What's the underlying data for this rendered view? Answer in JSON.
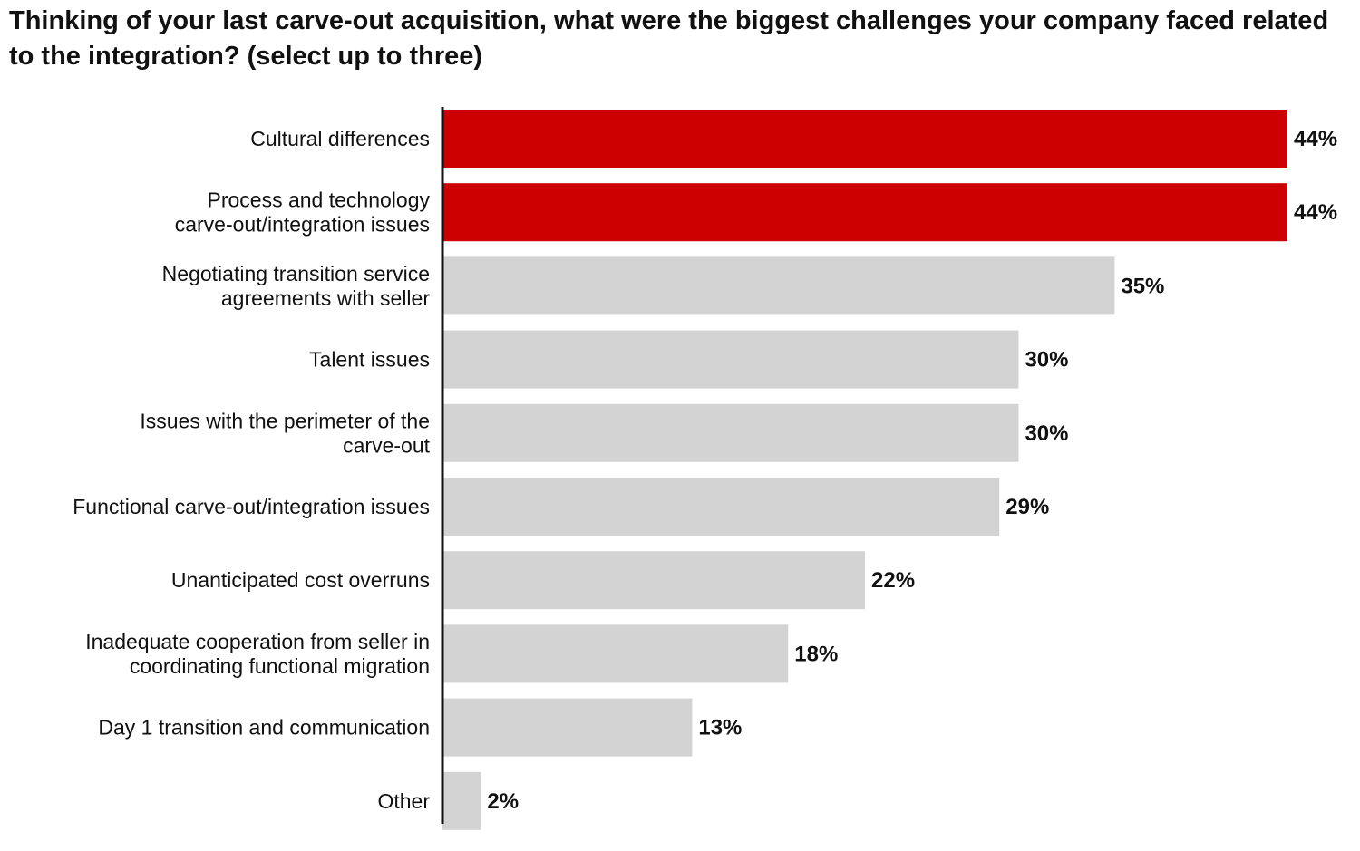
{
  "chart_data": {
    "type": "bar",
    "orientation": "horizontal",
    "title": "Thinking of your last carve-out acquisition, what were the biggest challenges your company faced related to the integration?  (select up to three)",
    "categories": [
      [
        "Cultural differences"
      ],
      [
        "Process and technology",
        "carve-out/integration issues"
      ],
      [
        "Negotiating transition service",
        "agreements with seller"
      ],
      [
        "Talent issues"
      ],
      [
        "Issues with the perimeter of the",
        "carve-out"
      ],
      [
        "Functional carve-out/integration issues"
      ],
      [
        "Unanticipated cost overruns"
      ],
      [
        "Inadequate cooperation from seller in",
        "coordinating functional migration"
      ],
      [
        "Day 1 transition and communication"
      ],
      [
        "Other"
      ]
    ],
    "values": [
      44,
      44,
      35,
      30,
      30,
      29,
      22,
      18,
      13,
      2
    ],
    "value_labels": [
      "44%",
      "44%",
      "35%",
      "30%",
      "30%",
      "29%",
      "22%",
      "18%",
      "13%",
      "2%"
    ],
    "highlight": [
      true,
      true,
      false,
      false,
      false,
      false,
      false,
      false,
      false,
      false
    ],
    "xlim": [
      0,
      44
    ],
    "grid": false,
    "legend": "none",
    "colors": {
      "highlight": "#cc0000",
      "default": "#d3d3d3",
      "axis": "#111111",
      "text": "#111111"
    }
  }
}
